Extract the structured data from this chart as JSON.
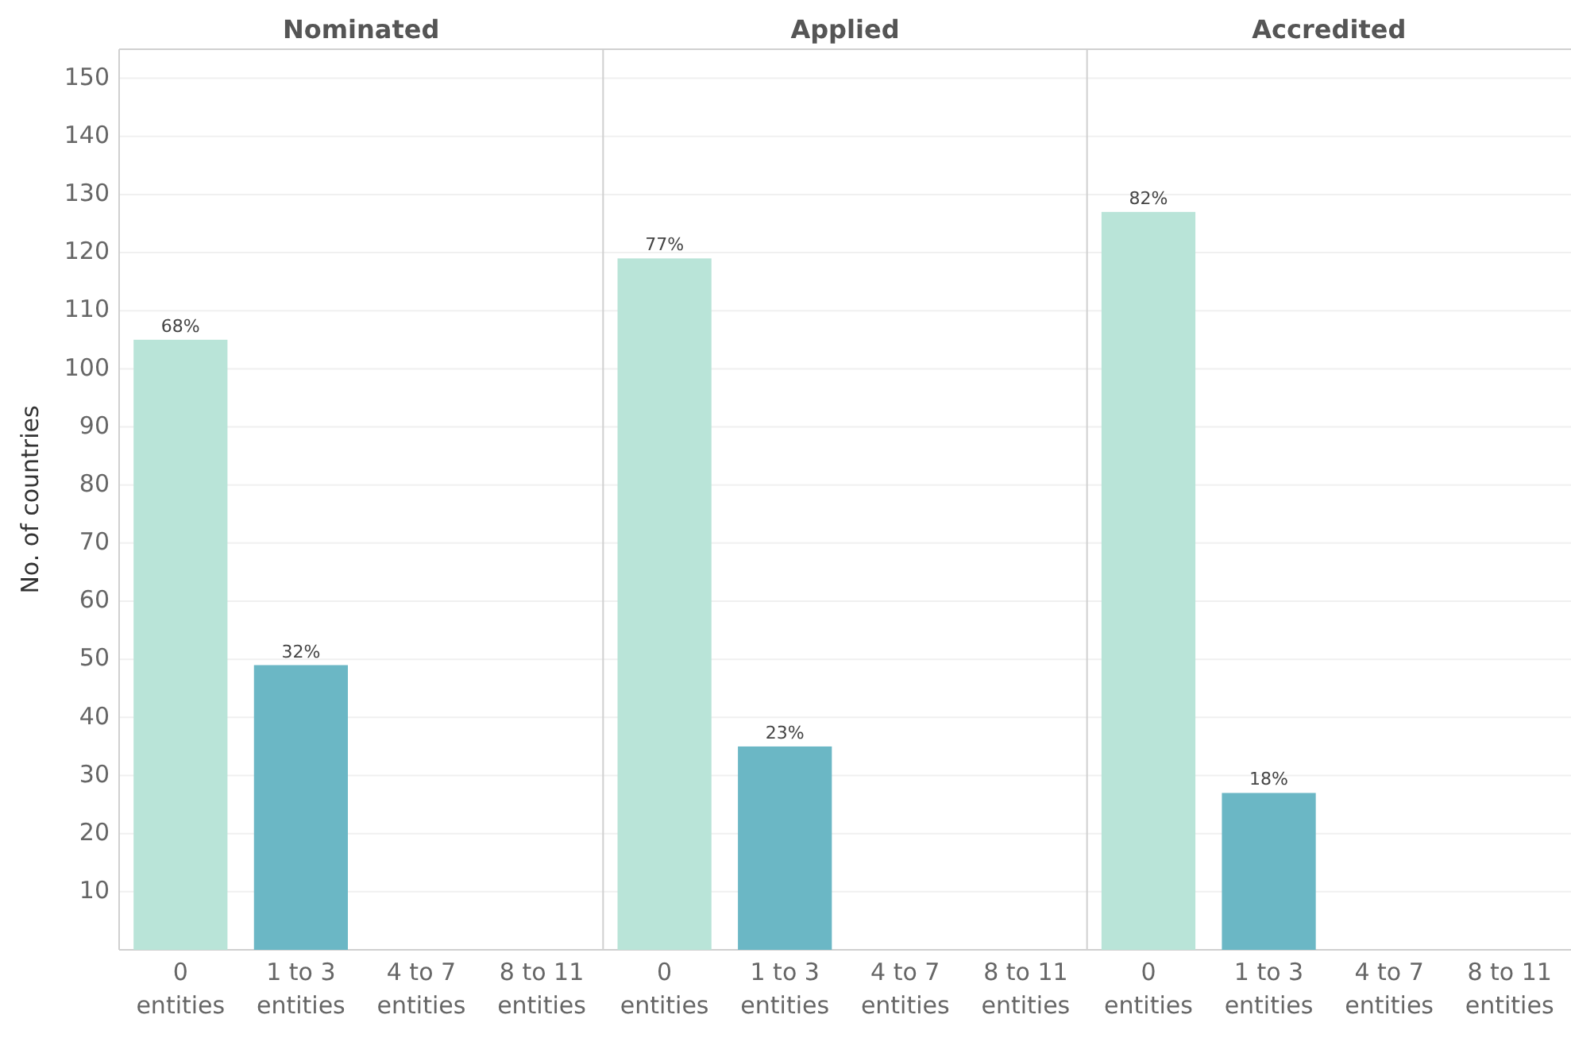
{
  "chart_data": [
    {
      "type": "bar",
      "title": "Nominated",
      "ylabel": "No. of countries",
      "categories": [
        "0 entities",
        "1 to 3 entities",
        "4 to 7 entities",
        "8 to 11 entities"
      ],
      "values": [
        105,
        49,
        0,
        0
      ],
      "colors": [
        "#b9e4d8",
        "#6bb7c5",
        "#6bb7c5",
        "#6bb7c5"
      ],
      "annotations": [
        {
          "text": "68%",
          "x": "0 entities",
          "y": 105
        },
        {
          "text": "32%",
          "x": "1 to 3 entities",
          "y": 49
        }
      ],
      "ylim": [
        0,
        155
      ],
      "yticks": [
        10,
        20,
        30,
        40,
        50,
        60,
        70,
        80,
        90,
        100,
        110,
        120,
        130,
        140,
        150
      ],
      "grid": "y"
    },
    {
      "type": "bar",
      "title": "Applied",
      "categories": [
        "0 entities",
        "1 to 3 entities",
        "4 to 7 entities",
        "8 to 11 entities"
      ],
      "values": [
        119,
        35,
        0,
        0
      ],
      "colors": [
        "#b9e4d8",
        "#6bb7c5",
        "#6bb7c5",
        "#6bb7c5"
      ],
      "annotations": [
        {
          "text": "77%",
          "x": "0 entities",
          "y": 119
        },
        {
          "text": "23%",
          "x": "1 to 3 entities",
          "y": 35
        }
      ],
      "ylim": [
        0,
        155
      ],
      "yticks": [
        10,
        20,
        30,
        40,
        50,
        60,
        70,
        80,
        90,
        100,
        110,
        120,
        130,
        140,
        150
      ],
      "grid": "y",
      "tick_labels": "x"
    },
    {
      "type": "bar",
      "title": "Accredited",
      "categories": [
        "0 entities",
        "1 to 3 entities",
        "4 to 7 entities",
        "8 to 11 entities"
      ],
      "values": [
        127,
        27,
        0,
        0
      ],
      "colors": [
        "#b9e4d8",
        "#6bb7c5",
        "#6bb7c5",
        "#6bb7c5"
      ],
      "annotations": [
        {
          "text": "82%",
          "x": "0 entities",
          "y": 127
        },
        {
          "text": "18%",
          "x": "1 to 3 entities",
          "y": 27
        }
      ],
      "ylim": [
        0,
        155
      ],
      "yticks": [
        10,
        20,
        30,
        40,
        50,
        60,
        70,
        80,
        90,
        100,
        110,
        120,
        130,
        140,
        150
      ],
      "grid": "y",
      "tick_labels": "x"
    }
  ]
}
